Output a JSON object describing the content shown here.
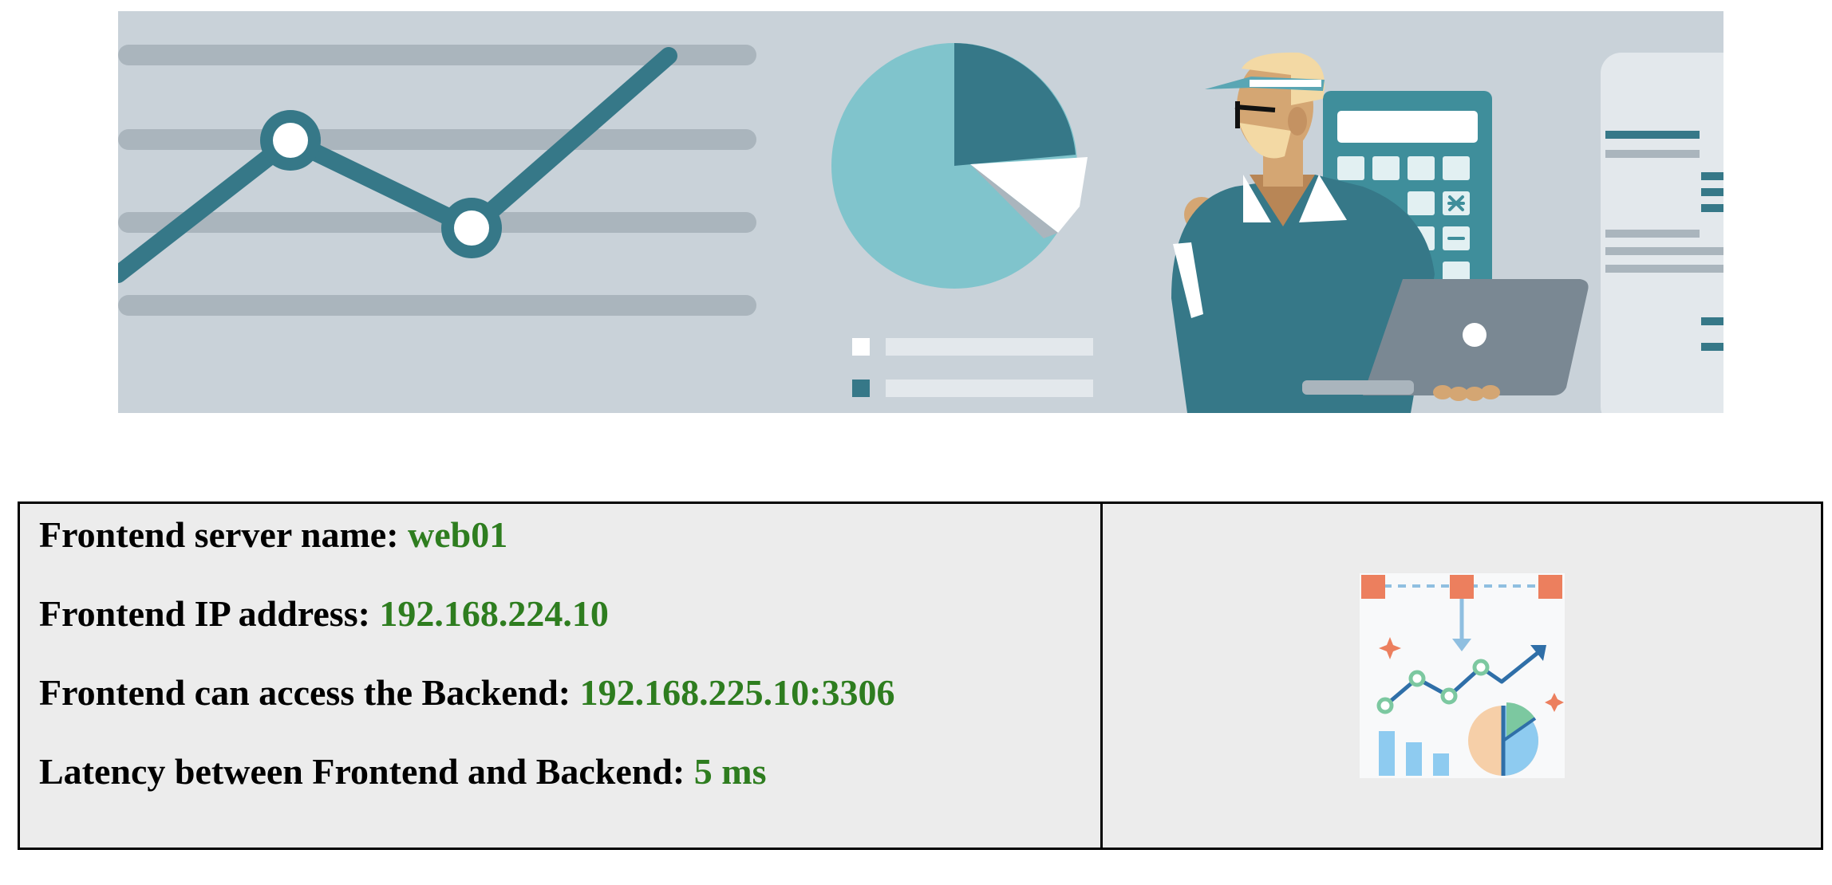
{
  "info": {
    "rows": [
      {
        "label": "Frontend server name: ",
        "value": "web01"
      },
      {
        "label": "Frontend IP address: ",
        "value": "192.168.224.10"
      },
      {
        "label": "Frontend can access the Backend: ",
        "value": "192.168.225.10:3306"
      },
      {
        "label": "Latency between Frontend and Backend: ",
        "value": "5 ms"
      }
    ]
  },
  "images": {
    "banner": "analytics-banner-illustration",
    "report_icon": "analytics-report-icon"
  },
  "colors": {
    "value_green": "#2e7d1f",
    "banner_bg": "#c9d2d9",
    "teal_dark": "#367888",
    "teal_light": "#80c4cc",
    "cell_bg": "#ececec"
  }
}
